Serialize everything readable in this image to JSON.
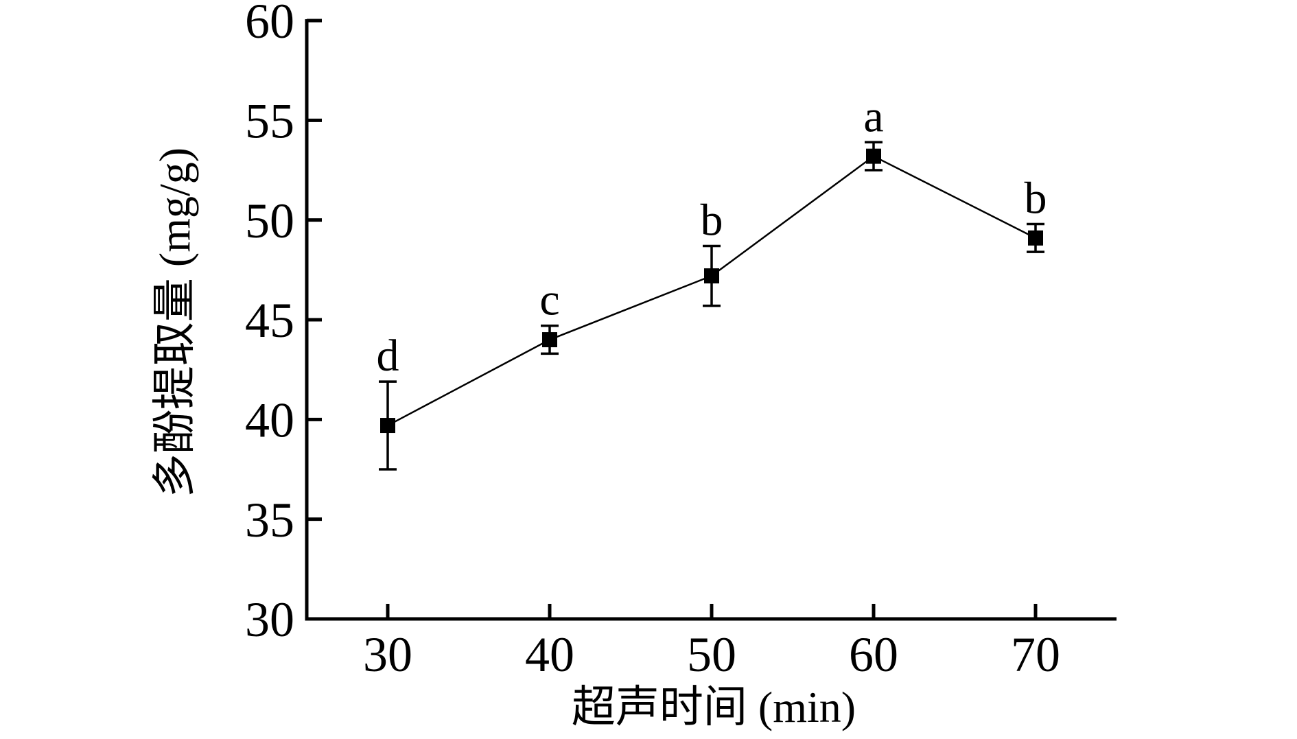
{
  "figure": {
    "background": "#ffffff",
    "ink_color": "#000000"
  },
  "chart_data": {
    "type": "line",
    "title": "",
    "xlabel": "超声时间 (min)",
    "ylabel": "多酚提取量 (mg/g)",
    "x": [
      30,
      40,
      50,
      60,
      70
    ],
    "series": [
      {
        "name": "多酚提取量",
        "values": [
          39.7,
          44.0,
          47.2,
          53.2,
          49.1
        ],
        "errors": [
          2.2,
          0.7,
          1.5,
          0.7,
          0.7
        ],
        "point_labels": [
          "d",
          "c",
          "b",
          "a",
          "b"
        ],
        "marker": "filled-square",
        "line_color": "#000000",
        "marker_color": "#000000"
      }
    ],
    "xlim": [
      25,
      75
    ],
    "ylim": [
      30,
      60
    ],
    "x_ticks": [
      "30",
      "40",
      "50",
      "60",
      "70"
    ],
    "y_ticks": [
      "30",
      "35",
      "40",
      "45",
      "50",
      "55",
      "60"
    ],
    "x_tick_values": [
      30,
      40,
      50,
      60,
      70
    ],
    "y_tick_values": [
      30,
      35,
      40,
      45,
      50,
      55,
      60
    ],
    "grid": false,
    "legend": "none"
  }
}
